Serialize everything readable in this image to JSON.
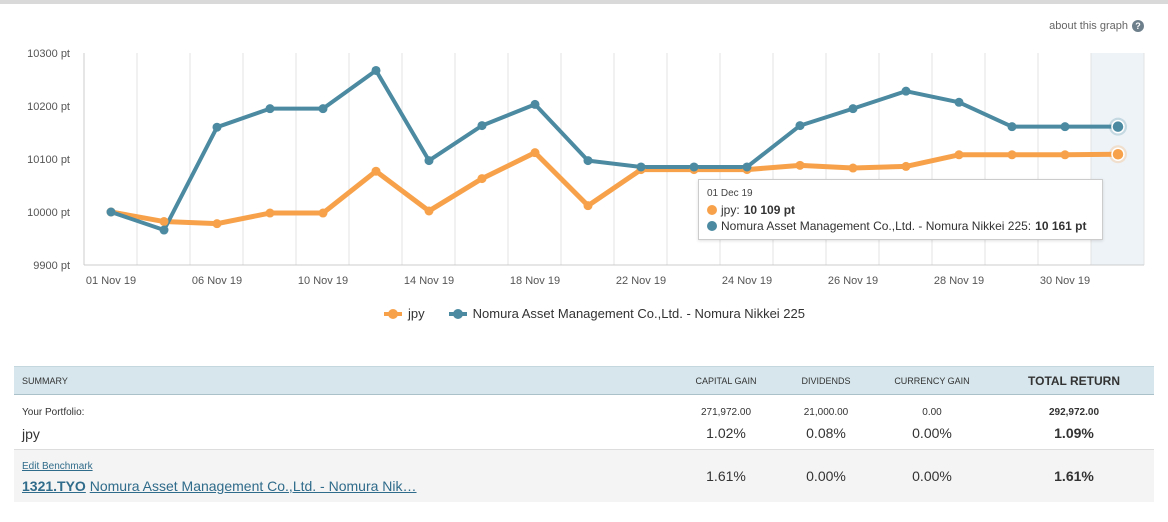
{
  "about_link": "about this graph",
  "about_icon": "help-icon",
  "colors": {
    "jpy": "#f7a24b",
    "benchmark": "#4b8aa1"
  },
  "chart_data": {
    "type": "line",
    "x": [
      "01 Nov 19",
      "03 Nov 19",
      "06 Nov 19",
      "08 Nov 19",
      "10 Nov 19",
      "12 Nov 19",
      "14 Nov 19",
      "16 Nov 19",
      "18 Nov 19",
      "20 Nov 19",
      "22 Nov 19",
      "23 Nov 19",
      "24 Nov 19",
      "25 Nov 19",
      "26 Nov 19",
      "27 Nov 19",
      "28 Nov 19",
      "29 Nov 19",
      "30 Nov 19",
      "01 Dec 19"
    ],
    "x_tick_labels": [
      "01 Nov 19",
      "06 Nov 19",
      "10 Nov 19",
      "14 Nov 19",
      "18 Nov 19",
      "22 Nov 19",
      "24 Nov 19",
      "26 Nov 19",
      "28 Nov 19",
      "30 Nov 19"
    ],
    "y_tick_labels": [
      "10300 pt",
      "10200 pt",
      "10100 pt",
      "10000 pt",
      "9900 pt"
    ],
    "y_ticks": [
      10300,
      10200,
      10100,
      10000,
      9900
    ],
    "ylim": [
      9900,
      10300
    ],
    "series": [
      {
        "name": "jpy",
        "values": [
          10000,
          9982,
          9978,
          9998,
          9998,
          10077,
          10002,
          10063,
          10112,
          10012,
          10080,
          10080,
          10080,
          10088,
          10083,
          10086,
          10108,
          10108,
          10108,
          10109
        ]
      },
      {
        "name": "Nomura Asset Management Co.,Ltd. - Nomura Nikkei 225",
        "values": [
          10000,
          9966,
          10160,
          10195,
          10195,
          10267,
          10097,
          10163,
          10203,
          10097,
          10085,
          10085,
          10085,
          10163,
          10195,
          10228,
          10207,
          10161,
          10161,
          10161
        ]
      }
    ],
    "grid": true,
    "legend": "bottom-center",
    "highlight_index": 19
  },
  "tooltip": {
    "date": "01 Dec 19",
    "jpy_label": "jpy: ",
    "jpy_value": "10 109 pt",
    "bench_label": "Nomura Asset Management Co.,Ltd. - Nomura Nikkei 225: ",
    "bench_value": "10 161 pt"
  },
  "legend": {
    "jpy": "jpy",
    "bench": "Nomura Asset Management Co.,Ltd. - Nomura Nikkei 225"
  },
  "summary": {
    "headers": {
      "summary": "Summary",
      "capital_gain": "Capital Gain",
      "dividends": "Dividends",
      "currency_gain": "Currency Gain",
      "total_return": "Total Return"
    },
    "portfolio": {
      "label": "Your Portfolio:",
      "name": "jpy",
      "capital_gain_abs": "271,972.00",
      "capital_gain_pct": "1.02%",
      "dividends_abs": "21,000.00",
      "dividends_pct": "0.08%",
      "currency_gain_abs": "0.00",
      "currency_gain_pct": "0.00%",
      "total_abs": "292,972.00",
      "total_pct": "1.09%"
    },
    "benchmark": {
      "edit_label": "Edit Benchmark",
      "ticker": "1321.TYO",
      "name": "Nomura Asset Management Co.,Ltd. - Nomura Nik…",
      "capital_gain_pct": "1.61%",
      "dividends_pct": "0.00%",
      "currency_gain_pct": "0.00%",
      "total_pct": "1.61%"
    }
  }
}
